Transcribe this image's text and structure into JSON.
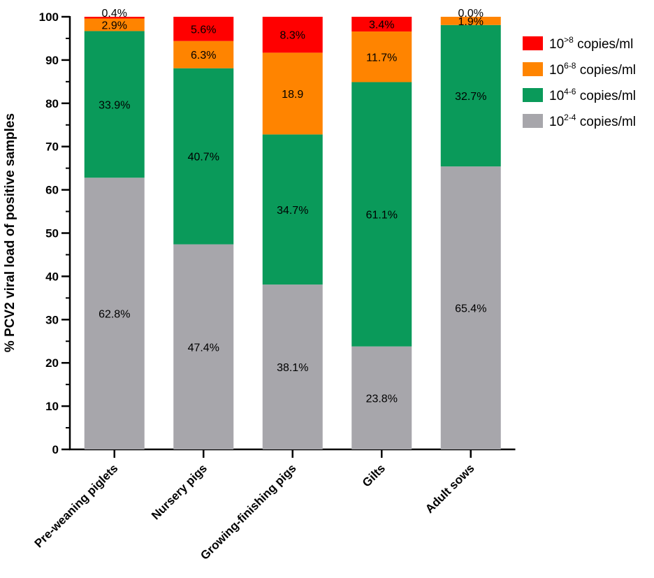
{
  "chart_data": {
    "type": "bar",
    "stacked": true,
    "ylabel": "% PCV2 viral load of positive samples",
    "xlabel": "",
    "ylim": [
      0,
      100
    ],
    "yticks": [
      0,
      10,
      20,
      30,
      40,
      50,
      60,
      70,
      80,
      90,
      100
    ],
    "categories": [
      "Pre-weaning piglets",
      "Nursery pigs",
      "Growing-finishing pigs",
      "Gilts",
      "Adult sows"
    ],
    "series": [
      {
        "name": "10^2-4 copies/ml",
        "legend_base": "10",
        "legend_sup": "2-4",
        "legend_unit": " copies/ml",
        "color": "#a7a6ab",
        "values": [
          62.8,
          47.4,
          38.1,
          23.8,
          65.4
        ],
        "labels": [
          "62.8%",
          "47.4%",
          "38.1%",
          "23.8%",
          "65.4%"
        ]
      },
      {
        "name": "10^4-6 copies/ml",
        "legend_base": "10",
        "legend_sup": "4-6",
        "legend_unit": " copies/ml",
        "color": "#0a9a5a",
        "values": [
          33.9,
          40.7,
          34.7,
          61.1,
          32.7
        ],
        "labels": [
          "33.9%",
          "40.7%",
          "34.7%",
          "61.1%",
          "32.7%"
        ]
      },
      {
        "name": "10^6-8 copies/ml",
        "legend_base": "10",
        "legend_sup": "6-8",
        "legend_unit": " copies/ml",
        "color": "#ff8400",
        "values": [
          2.9,
          6.3,
          18.9,
          11.7,
          1.9
        ],
        "labels": [
          "2.9%",
          "6.3%",
          "18.9",
          "11.7%",
          "1.9%"
        ]
      },
      {
        "name": "10^>8 copies/ml",
        "legend_base": "10",
        "legend_sup": ">8",
        "legend_unit": " copies/ml",
        "color": "#ff0000",
        "values": [
          0.4,
          5.6,
          8.3,
          3.4,
          0.0
        ],
        "labels": [
          "0.4%",
          "5.6%",
          "8.3%",
          "3.4%",
          "0.0%"
        ]
      }
    ],
    "legend_order": [
      3,
      2,
      1,
      0
    ],
    "legend_position": "top-right"
  }
}
